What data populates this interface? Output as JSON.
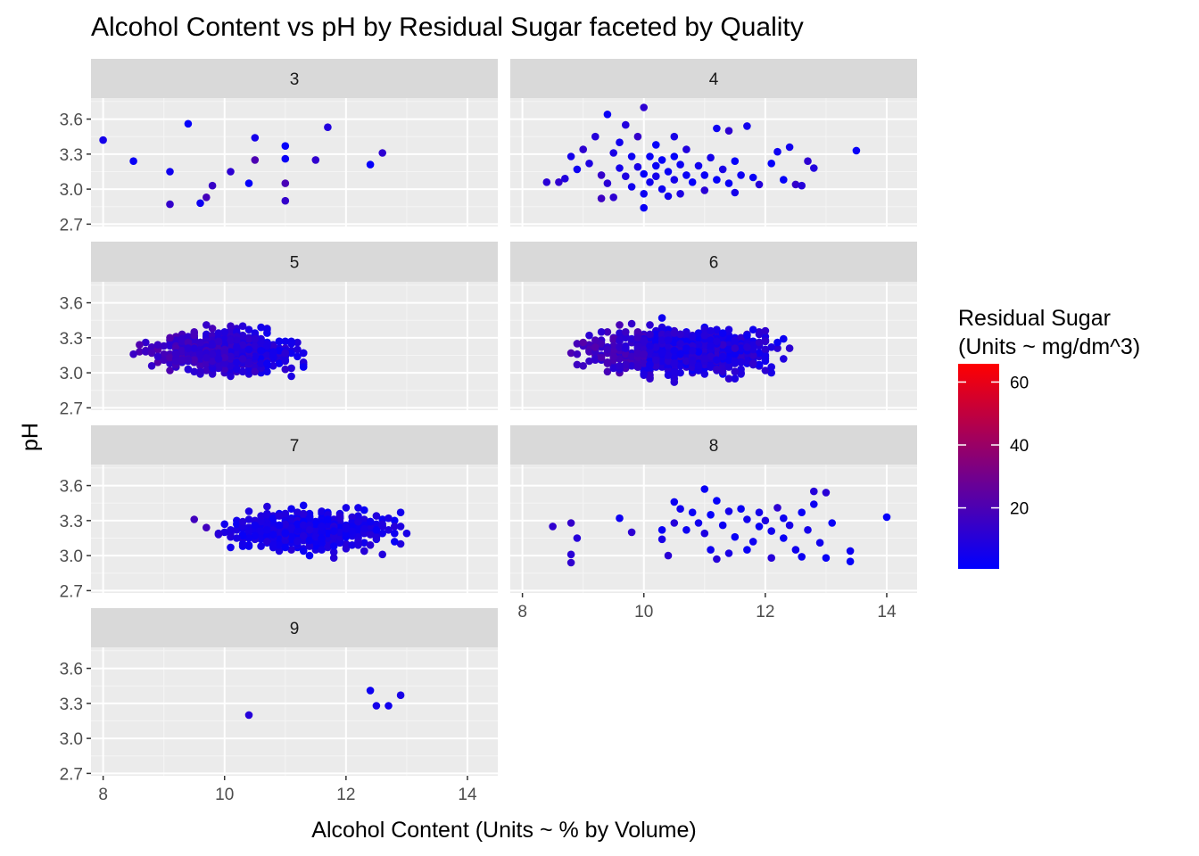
{
  "chart_data": {
    "type": "scatter",
    "title": "Alcohol Content vs pH by Residual Sugar faceted by Quality",
    "xlabel": "Alcohol Content (Units ~ % by Volume)",
    "ylabel": "pH",
    "xlim": [
      7.8,
      14.5
    ],
    "ylim": [
      2.68,
      3.78
    ],
    "x_ticks": [
      8,
      10,
      12,
      14
    ],
    "x_tick_labels": [
      "8",
      "10",
      "12",
      "14"
    ],
    "y_ticks": [
      2.7,
      3.0,
      3.3,
      3.6
    ],
    "y_tick_labels": [
      "2.7",
      "3.0",
      "3.3",
      "3.6"
    ],
    "grid": true,
    "facet_by": "Quality",
    "color_scale": {
      "title_line1": "Residual Sugar",
      "title_line2": "(Units ~ mg/dm^3)",
      "low_color": "#0000ff",
      "high_color": "#ff0000",
      "min": 0.6,
      "max": 65.8,
      "ticks": [
        20,
        40,
        60
      ],
      "tick_labels": [
        "20",
        "40",
        "60"
      ]
    },
    "legend_position": "right",
    "facets": [
      {
        "label": "3",
        "points": [
          [
            8.0,
            3.42,
            6
          ],
          [
            8.5,
            3.24,
            3
          ],
          [
            9.1,
            3.15,
            5
          ],
          [
            9.1,
            2.87,
            14
          ],
          [
            9.4,
            3.56,
            2
          ],
          [
            9.6,
            2.88,
            4
          ],
          [
            9.7,
            2.93,
            18
          ],
          [
            9.8,
            3.03,
            15
          ],
          [
            10.1,
            3.15,
            12
          ],
          [
            10.4,
            3.05,
            2
          ],
          [
            10.5,
            3.44,
            6
          ],
          [
            10.5,
            3.25,
            20
          ],
          [
            11.0,
            3.37,
            2
          ],
          [
            11.0,
            3.26,
            3
          ],
          [
            11.0,
            3.05,
            19
          ],
          [
            11.0,
            2.9,
            14
          ],
          [
            11.5,
            3.25,
            13
          ],
          [
            11.7,
            3.53,
            9
          ],
          [
            12.4,
            3.21,
            2
          ],
          [
            12.6,
            3.31,
            12
          ]
        ]
      },
      {
        "label": "4",
        "points": [
          [
            8.4,
            3.06,
            11
          ],
          [
            8.6,
            3.06,
            13
          ],
          [
            8.7,
            3.09,
            9
          ],
          [
            8.8,
            3.28,
            6
          ],
          [
            8.9,
            3.17,
            4
          ],
          [
            9.0,
            3.34,
            12
          ],
          [
            9.1,
            3.22,
            8
          ],
          [
            9.2,
            3.45,
            10
          ],
          [
            9.3,
            3.12,
            14
          ],
          [
            9.3,
            2.92,
            16
          ],
          [
            9.4,
            3.64,
            3
          ],
          [
            9.4,
            3.05,
            11
          ],
          [
            9.5,
            3.31,
            7
          ],
          [
            9.5,
            2.93,
            12
          ],
          [
            9.6,
            3.4,
            5
          ],
          [
            9.6,
            3.18,
            6
          ],
          [
            9.7,
            3.55,
            9
          ],
          [
            9.7,
            3.11,
            8
          ],
          [
            9.8,
            3.02,
            5
          ],
          [
            9.8,
            3.28,
            4
          ],
          [
            9.9,
            3.45,
            14
          ],
          [
            9.9,
            3.19,
            7
          ],
          [
            10.0,
            3.7,
            12
          ],
          [
            10.0,
            2.96,
            4
          ],
          [
            10.0,
            2.84,
            3
          ],
          [
            10.0,
            3.13,
            2
          ],
          [
            10.1,
            3.28,
            3
          ],
          [
            10.1,
            3.06,
            5
          ],
          [
            10.2,
            3.38,
            2
          ],
          [
            10.2,
            3.2,
            3
          ],
          [
            10.2,
            3.11,
            6
          ],
          [
            10.3,
            3.25,
            2
          ],
          [
            10.3,
            3.0,
            4
          ],
          [
            10.4,
            3.15,
            3
          ],
          [
            10.4,
            2.94,
            5
          ],
          [
            10.5,
            3.45,
            7
          ],
          [
            10.5,
            3.28,
            2
          ],
          [
            10.5,
            3.08,
            6
          ],
          [
            10.6,
            3.21,
            4
          ],
          [
            10.6,
            2.96,
            8
          ],
          [
            10.7,
            3.34,
            9
          ],
          [
            10.7,
            3.12,
            3
          ],
          [
            10.8,
            3.06,
            2
          ],
          [
            10.9,
            3.2,
            5
          ],
          [
            11.0,
            3.12,
            3
          ],
          [
            11.0,
            2.99,
            11
          ],
          [
            11.1,
            3.27,
            6
          ],
          [
            11.2,
            3.52,
            4
          ],
          [
            11.2,
            3.08,
            2
          ],
          [
            11.3,
            3.17,
            7
          ],
          [
            11.4,
            3.5,
            12
          ],
          [
            11.4,
            3.05,
            3
          ],
          [
            11.5,
            3.24,
            2
          ],
          [
            11.5,
            2.97,
            6
          ],
          [
            11.6,
            3.12,
            4
          ],
          [
            11.7,
            3.54,
            5
          ],
          [
            11.8,
            3.1,
            3
          ],
          [
            11.9,
            3.04,
            10
          ],
          [
            12.1,
            3.22,
            2
          ],
          [
            12.2,
            3.32,
            4
          ],
          [
            12.3,
            3.08,
            2
          ],
          [
            12.4,
            3.36,
            5
          ],
          [
            12.5,
            3.04,
            14
          ],
          [
            12.6,
            3.03,
            10
          ],
          [
            12.7,
            3.24,
            12
          ],
          [
            12.8,
            3.18,
            9
          ],
          [
            13.5,
            3.33,
            3
          ]
        ]
      },
      {
        "label": "5",
        "points": []
      },
      {
        "label": "6",
        "points": []
      },
      {
        "label": "7",
        "points": []
      },
      {
        "label": "8",
        "points": [
          [
            8.5,
            3.25,
            13
          ],
          [
            8.8,
            3.28,
            14
          ],
          [
            8.8,
            3.01,
            11
          ],
          [
            8.8,
            2.94,
            13
          ],
          [
            8.9,
            3.15,
            10
          ],
          [
            9.6,
            3.32,
            4
          ],
          [
            9.8,
            3.2,
            12
          ],
          [
            10.3,
            3.22,
            3
          ],
          [
            10.3,
            3.14,
            7
          ],
          [
            10.4,
            3.0,
            11
          ],
          [
            10.5,
            3.46,
            4
          ],
          [
            10.5,
            3.28,
            10
          ],
          [
            10.6,
            3.4,
            5
          ],
          [
            10.7,
            3.22,
            4
          ],
          [
            10.8,
            3.37,
            3
          ],
          [
            10.9,
            3.28,
            5
          ],
          [
            11.0,
            3.57,
            3
          ],
          [
            11.0,
            3.19,
            8
          ],
          [
            11.1,
            3.35,
            2
          ],
          [
            11.1,
            3.05,
            4
          ],
          [
            11.2,
            3.47,
            2
          ],
          [
            11.2,
            2.97,
            10
          ],
          [
            11.3,
            3.26,
            4
          ],
          [
            11.4,
            3.38,
            6
          ],
          [
            11.4,
            3.02,
            7
          ],
          [
            11.5,
            3.16,
            3
          ],
          [
            11.6,
            3.4,
            3
          ],
          [
            11.7,
            3.31,
            5
          ],
          [
            11.7,
            3.05,
            3
          ],
          [
            11.8,
            3.12,
            4
          ],
          [
            11.9,
            3.25,
            3
          ],
          [
            11.9,
            3.37,
            6
          ],
          [
            12.0,
            3.3,
            8
          ],
          [
            12.1,
            3.21,
            5
          ],
          [
            12.1,
            2.98,
            10
          ],
          [
            12.2,
            3.41,
            12
          ],
          [
            12.3,
            3.15,
            3
          ],
          [
            12.3,
            3.32,
            4
          ],
          [
            12.4,
            3.26,
            7
          ],
          [
            12.5,
            3.05,
            5
          ],
          [
            12.6,
            3.37,
            3
          ],
          [
            12.6,
            2.99,
            4
          ],
          [
            12.7,
            3.22,
            6
          ],
          [
            12.8,
            3.44,
            4
          ],
          [
            12.8,
            3.55,
            10
          ],
          [
            12.9,
            3.11,
            5
          ],
          [
            13.0,
            3.54,
            11
          ],
          [
            13.0,
            2.98,
            3
          ],
          [
            13.1,
            3.28,
            3
          ],
          [
            13.4,
            3.04,
            4
          ],
          [
            13.4,
            2.95,
            2
          ],
          [
            14.0,
            3.33,
            2
          ]
        ]
      },
      {
        "label": "9",
        "points": [
          [
            10.4,
            3.2,
            10
          ],
          [
            12.4,
            3.41,
            4
          ],
          [
            12.5,
            3.28,
            6
          ],
          [
            12.7,
            3.28,
            5
          ],
          [
            12.9,
            3.37,
            7
          ]
        ]
      }
    ]
  }
}
